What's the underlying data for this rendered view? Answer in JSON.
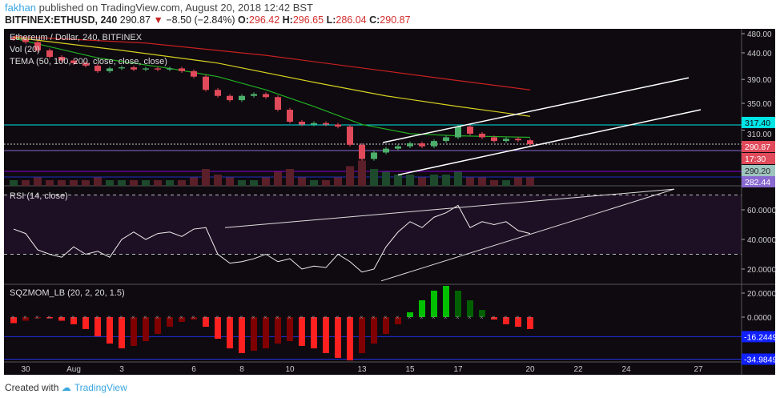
{
  "header": {
    "user": "fakhan",
    "published": " published on TradingView.com, August 20, 2018 12:42 BST",
    "symbol": "BITFINEX:ETHUSD, 240",
    "last": "290.87",
    "change": "−8.50 (−2.84%)",
    "o_label": "O:",
    "o": "296.42",
    "h_label": "H:",
    "h": "296.65",
    "l_label": "L:",
    "l": "286.04",
    "c_label": "C:",
    "c": "290.87"
  },
  "legend": {
    "title": "Ethereum / Dollar, 240, BITFINEX",
    "vol": "Vol (20)",
    "tema": "TEMA (50, 100, 200, close, close, close)",
    "rsi": "RSI (14, close)",
    "sqz": "SQZMOM_LB (20, 2, 20, 1.5)"
  },
  "colors": {
    "bg": "#0e0a10",
    "up": "#4caf6a",
    "down": "#e04a5a",
    "cyan": "#00e5e5",
    "rsi_bg": "#1e1024"
  },
  "footer": {
    "created": "Created with",
    "brand": "TradingView"
  },
  "chart_data": [
    {
      "type": "candlestick",
      "pane": "price",
      "title": "Ethereum / Dollar, 240, BITFINEX",
      "x_start_day": -0.5,
      "x_step_day": 0.5,
      "close": [
        468,
        462,
        445,
        432,
        425,
        420,
        415,
        405,
        410,
        412,
        408,
        410,
        408,
        410,
        405,
        395,
        372,
        362,
        355,
        362,
        365,
        360,
        340,
        322,
        318,
        320,
        318,
        315,
        290,
        272,
        280,
        285,
        288,
        292,
        288,
        295,
        300,
        315,
        305,
        300,
        295,
        298,
        296,
        290.87
      ],
      "volume": [
        2,
        2,
        3,
        2,
        2,
        2,
        2,
        3,
        2,
        2,
        2,
        2,
        2,
        2,
        2,
        3,
        6,
        4,
        3,
        2,
        2,
        3,
        5,
        6,
        3,
        2,
        2,
        3,
        7,
        9,
        6,
        5,
        4,
        4,
        3,
        4,
        4,
        5,
        3,
        3,
        2,
        2,
        3,
        3
      ],
      "tema": [
        {
          "name": "TEMA 50",
          "color": "#22b022",
          "points": [
            [
              -0.5,
              470
            ],
            [
              3,
              430
            ],
            [
              6,
              410
            ],
            [
              8,
              395
            ],
            [
              10,
              372
            ],
            [
              12,
              345
            ],
            [
              14,
              318
            ],
            [
              16,
              305
            ],
            [
              18,
              302
            ],
            [
              21,
              300
            ]
          ]
        },
        {
          "name": "TEMA 100",
          "color": "#d8d020",
          "points": [
            [
              -0.5,
              472
            ],
            [
              4,
              445
            ],
            [
              8,
              420
            ],
            [
              12,
              385
            ],
            [
              15,
              362
            ],
            [
              18,
              345
            ],
            [
              21,
              330
            ]
          ]
        },
        {
          "name": "TEMA 200",
          "color": "#c82020",
          "points": [
            [
              -0.5,
              474
            ],
            [
              5,
              460
            ],
            [
              10,
              435
            ],
            [
              15,
              405
            ],
            [
              18,
              388
            ],
            [
              21,
              372
            ]
          ]
        }
      ],
      "channel": [
        {
          "from": [
            14.87,
            293
          ],
          "to": [
            27.6,
            393
          ]
        },
        {
          "from": [
            15.5,
            253
          ],
          "to": [
            28.1,
            340
          ]
        }
      ],
      "axis_ticks": [
        "480.00",
        "440.00",
        "390.00",
        "350.00",
        "310.00"
      ],
      "axis_tick_values": [
        480,
        440,
        390,
        350,
        310
      ],
      "markers": [
        {
          "label": "317.40",
          "color": "#00e5e5",
          "text": "#0e0a10"
        },
        {
          "label": "290.87",
          "color": "#e04a5a",
          "text": "#fff"
        },
        {
          "label": "17:30",
          "color": "#e04a5a",
          "text": "#fff"
        },
        {
          "label": "290.20",
          "color": "#9ec4c0",
          "text": "#222"
        },
        {
          "label": "282.44",
          "color": "#8a6ad0",
          "text": "#fff"
        }
      ]
    },
    {
      "type": "line",
      "pane": "rsi",
      "title": "RSI (14, close)",
      "ylim": [
        0,
        100
      ],
      "bands": [
        30,
        70
      ],
      "x_start_day": -0.5,
      "x_step_day": 0.5,
      "values": [
        47,
        44,
        33,
        30,
        28,
        35,
        30,
        32,
        28,
        40,
        45,
        40,
        44,
        45,
        42,
        47,
        48,
        30,
        24,
        25,
        27,
        30,
        25,
        27,
        20,
        22,
        21,
        30,
        25,
        18,
        20,
        35,
        45,
        52,
        48,
        55,
        58,
        63,
        48,
        52,
        50,
        52,
        46,
        44
      ],
      "trendlines": [
        {
          "from": [
            8.3,
            48
          ],
          "to": [
            27,
            74
          ]
        },
        {
          "from": [
            14.8,
            12
          ],
          "to": [
            27,
            74
          ]
        }
      ],
      "axis_ticks": [
        "60.0000",
        "40.0000",
        "20.0000"
      ],
      "axis_tick_values": [
        60,
        40,
        20
      ]
    },
    {
      "type": "bar",
      "pane": "sqzmom",
      "title": "SQZMOM_LB (20, 2, 20, 1.5)",
      "x_start_day": -0.5,
      "x_step_day": 0.5,
      "values": [
        -5,
        -3,
        -1,
        -1,
        -3,
        -6,
        -10,
        -16,
        -22,
        -26,
        -24,
        -20,
        -14,
        -8,
        -4,
        -2,
        -8,
        -18,
        -26,
        -30,
        -28,
        -26,
        -22,
        -20,
        -24,
        -26,
        -30,
        -34,
        -36,
        -30,
        -22,
        -14,
        -6,
        4,
        14,
        22,
        26,
        22,
        14,
        6,
        -2,
        -6,
        -8,
        -10
      ],
      "levels": [
        "-16.2449",
        "-34.9849"
      ],
      "level_values": [
        -16.2449,
        -34.9849
      ],
      "axis_ticks": [
        "20.0000",
        "0.0000"
      ],
      "axis_tick_values": [
        20,
        0
      ]
    }
  ],
  "time_axis": {
    "labels": [
      "30",
      "Aug",
      "3",
      "6",
      "8",
      "10",
      "13",
      "15",
      "17",
      "20",
      "22",
      "24",
      "27"
    ],
    "days": [
      0,
      2,
      4,
      7,
      9,
      11,
      14,
      16,
      18,
      21,
      23,
      25,
      28
    ]
  }
}
